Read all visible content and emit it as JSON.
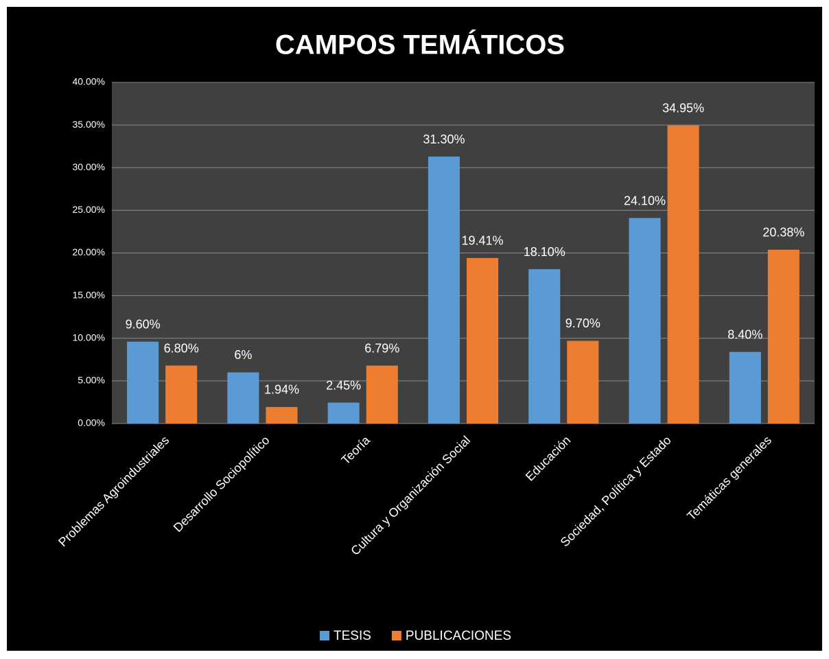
{
  "chart_data": {
    "type": "bar",
    "title": "CAMPOS TEMÁTICOS",
    "categories": [
      "Problemas Agroindustriales",
      "Desarrollo Sociopolítico",
      "Teoría",
      "Cultura y Organización Social",
      "Educación",
      "Sociedad, Política y Estado",
      "Temáticas generales"
    ],
    "series": [
      {
        "name": "TESIS",
        "color": "#5b9bd5",
        "values": [
          9.6,
          6,
          2.45,
          31.3,
          18.1,
          24.1,
          8.4
        ],
        "value_labels": [
          "9.60%",
          "6%",
          "2.45%",
          "31.30%",
          "18.10%",
          "24.10%",
          "8.40%"
        ]
      },
      {
        "name": "PUBLICACIONES",
        "color": "#ed7d31",
        "values": [
          6.8,
          1.94,
          6.79,
          19.41,
          9.7,
          34.95,
          20.38
        ],
        "value_labels": [
          "6.80%",
          "1.94%",
          "6.79%",
          "19.41%",
          "9.70%",
          "34.95%",
          "20.38%"
        ]
      }
    ],
    "ylim": [
      0,
      40
    ],
    "yticks": [
      {
        "value": 0,
        "label": "0.00%"
      },
      {
        "value": 5,
        "label": "5.00%"
      },
      {
        "value": 10,
        "label": "10.00%"
      },
      {
        "value": 15,
        "label": "15.00%"
      },
      {
        "value": 20,
        "label": "20.00%"
      },
      {
        "value": 25,
        "label": "25.00%"
      },
      {
        "value": 30,
        "label": "30.00%"
      },
      {
        "value": 35,
        "label": "35.00%"
      },
      {
        "value": 40,
        "label": "40.00%"
      }
    ],
    "grid": true,
    "legend": "bottom"
  }
}
